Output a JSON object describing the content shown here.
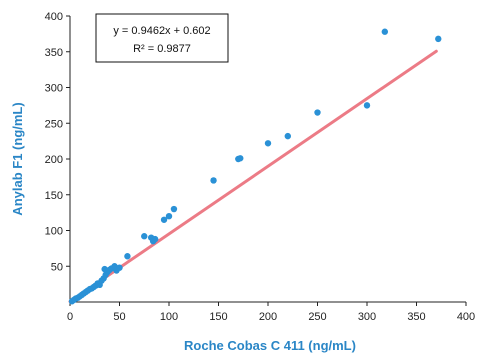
{
  "chart_data": {
    "type": "scatter",
    "title": "",
    "xlabel": "Roche Cobas C 411 (ng/mL)",
    "ylabel": "Anylab F1 (ng/mL)",
    "xlim": [
      0,
      400
    ],
    "ylim": [
      0,
      400
    ],
    "xticks": [
      "0",
      "50",
      "100",
      "150",
      "200",
      "250",
      "300",
      "350",
      "400"
    ],
    "yticks": [
      "50",
      "100",
      "150",
      "200",
      "250",
      "300",
      "350",
      "400"
    ],
    "grid": false,
    "legend": "none",
    "points": [
      [
        2,
        1
      ],
      [
        4,
        3
      ],
      [
        6,
        5
      ],
      [
        8,
        6
      ],
      [
        10,
        8
      ],
      [
        12,
        10
      ],
      [
        14,
        12
      ],
      [
        16,
        14
      ],
      [
        18,
        16
      ],
      [
        20,
        18
      ],
      [
        22,
        19
      ],
      [
        24,
        21
      ],
      [
        26,
        23
      ],
      [
        28,
        26
      ],
      [
        30,
        24
      ],
      [
        32,
        30
      ],
      [
        34,
        33
      ],
      [
        36,
        38
      ],
      [
        38,
        42
      ],
      [
        40,
        45
      ],
      [
        42,
        47
      ],
      [
        45,
        50
      ],
      [
        47,
        44
      ],
      [
        50,
        48
      ],
      [
        35,
        46
      ],
      [
        58,
        64
      ],
      [
        75,
        92
      ],
      [
        82,
        90
      ],
      [
        84,
        85
      ],
      [
        86,
        88
      ],
      [
        95,
        115
      ],
      [
        100,
        120
      ],
      [
        105,
        130
      ],
      [
        145,
        170
      ],
      [
        170,
        200
      ],
      [
        172,
        201
      ],
      [
        200,
        222
      ],
      [
        220,
        232
      ],
      [
        250,
        265
      ],
      [
        300,
        275
      ],
      [
        318,
        378
      ],
      [
        372,
        368
      ]
    ],
    "regression": {
      "slope": 0.9462,
      "intercept": 0.602,
      "equation": "y = 0.9462x + 0.602",
      "r2": "R² = 0.9877"
    },
    "colors": {
      "points": "#2a91d6",
      "line": "#ec7b86",
      "axis_titles": "#2a86c6"
    }
  }
}
